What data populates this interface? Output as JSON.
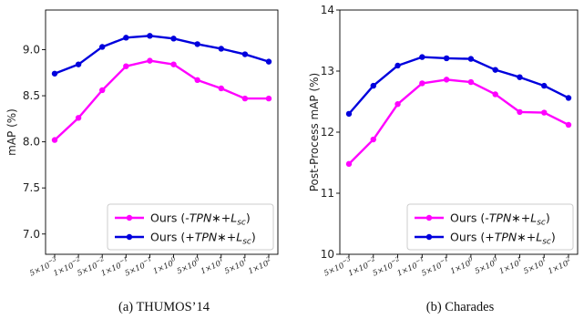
{
  "chart_data": [
    {
      "type": "line",
      "caption": "(a) THUMOS’14",
      "ylabel": "mAP (%)",
      "xlabel": "",
      "categories": [
        "5×10⁻³",
        "1×10⁻²",
        "5×10⁻²",
        "1×10⁻¹",
        "5×10⁻¹",
        "1×10⁰",
        "5×10⁰",
        "1×10¹",
        "5×10¹",
        "1×10²"
      ],
      "ylim": [
        6.78,
        9.43
      ],
      "yticks": [
        7.0,
        7.5,
        8.0,
        8.5,
        9.0
      ],
      "ytick_labels": [
        "7.0",
        "7.5",
        "8.0",
        "8.5",
        "9.0"
      ],
      "grid": false,
      "legend": "lower right",
      "series": [
        {
          "name": "Ours (-TPN∗+Lsc)",
          "color": "#ff00ff",
          "values": [
            8.02,
            8.26,
            8.56,
            8.82,
            8.88,
            8.84,
            8.67,
            8.58,
            8.47,
            8.47
          ]
        },
        {
          "name": "Ours (+TPN∗+Lsc)",
          "color": "#0000dd",
          "values": [
            8.74,
            8.84,
            9.03,
            9.13,
            9.15,
            9.12,
            9.06,
            9.01,
            8.95,
            8.87
          ]
        }
      ]
    },
    {
      "type": "line",
      "caption": "(b) Charades",
      "ylabel": "Post-Process mAP (%)",
      "xlabel": "",
      "categories": [
        "5×10⁻³",
        "1×10⁻²",
        "5×10⁻²",
        "1×10⁻¹",
        "5×10⁻¹",
        "1×10⁰",
        "5×10⁰",
        "1×10¹",
        "5×10¹",
        "1×10²"
      ],
      "ylim": [
        10,
        14
      ],
      "yticks": [
        10,
        11,
        12,
        13,
        14
      ],
      "ytick_labels": [
        "10",
        "11",
        "12",
        "13",
        "14"
      ],
      "grid": false,
      "legend": "lower right",
      "series": [
        {
          "name": "Ours (-TPN∗+Lsc)",
          "color": "#ff00ff",
          "values": [
            11.48,
            11.88,
            12.46,
            12.8,
            12.86,
            12.82,
            12.62,
            12.33,
            12.32,
            12.12
          ]
        },
        {
          "name": "Ours (+TPN∗+Lsc)",
          "color": "#0000dd",
          "values": [
            12.3,
            12.76,
            13.09,
            13.23,
            13.21,
            13.2,
            13.02,
            12.9,
            12.76,
            12.56
          ]
        }
      ]
    }
  ]
}
